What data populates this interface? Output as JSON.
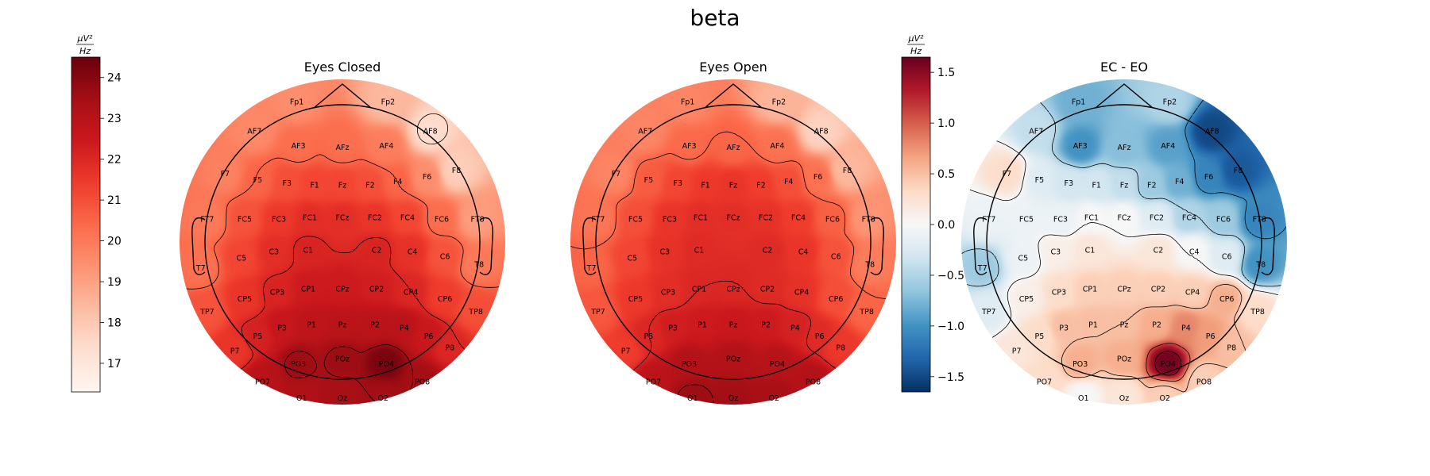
{
  "chart_data": {
    "type": "heatmap",
    "title": "beta",
    "unit_label": {
      "numerator": "μV²",
      "denominator": "Hz"
    },
    "electrodes": [
      "Fp1",
      "Fp2",
      "AF7",
      "AF3",
      "AFz",
      "AF4",
      "AF8",
      "F7",
      "F5",
      "F3",
      "F1",
      "Fz",
      "F2",
      "F4",
      "F6",
      "F8",
      "FT7",
      "FC5",
      "FC3",
      "FC1",
      "FCz",
      "FC2",
      "FC4",
      "FC6",
      "FT8",
      "T7",
      "C5",
      "C3",
      "C1",
      "C2",
      "C4",
      "C6",
      "T8",
      "TP7",
      "CP5",
      "CP3",
      "CP1",
      "CPz",
      "CP2",
      "CP4",
      "CP6",
      "TP8",
      "P7",
      "P5",
      "P3",
      "P1",
      "Pz",
      "P2",
      "P4",
      "P6",
      "P8",
      "PO7",
      "PO3",
      "POz",
      "PO4",
      "PO8",
      "O1",
      "Oz",
      "O2"
    ],
    "panels": [
      {
        "subtitle": "Eyes Closed",
        "colormap": "Reds",
        "colorbar": {
          "min": 16.3,
          "max": 24.5,
          "ticks": [
            17,
            18,
            19,
            20,
            21,
            22,
            23,
            24
          ]
        },
        "values": {
          "Fp1": 19.5,
          "Fp2": 18.4,
          "AF7": 19.6,
          "AF3": 20.3,
          "AFz": 20.3,
          "AF4": 19.9,
          "AF8": 17.4,
          "F7": 19.8,
          "F5": 20.5,
          "F3": 21.0,
          "F1": 21.2,
          "Fz": 21.2,
          "F2": 21.0,
          "F4": 20.5,
          "F6": 19.5,
          "F8": 17.8,
          "FT7": 20.0,
          "FC5": 20.9,
          "FC3": 21.5,
          "FC1": 21.8,
          "FCz": 21.8,
          "FC2": 21.6,
          "FC4": 21.2,
          "FC6": 20.3,
          "FT8": 19.1,
          "T7": 20.2,
          "C5": 21.2,
          "C3": 21.8,
          "C1": 22.1,
          "C2": 22.1,
          "C4": 21.7,
          "C6": 20.9,
          "T8": 20.0,
          "TP7": 20.9,
          "CP5": 21.6,
          "CP3": 22.1,
          "CP1": 22.4,
          "CPz": 22.4,
          "CP2": 22.3,
          "CP4": 22.0,
          "CP6": 21.4,
          "TP8": 21.0,
          "P7": 21.6,
          "P5": 22.2,
          "P3": 22.6,
          "P1": 22.8,
          "Pz": 22.9,
          "P2": 22.9,
          "P4": 22.9,
          "P6": 22.5,
          "P8": 22.0,
          "PO7": 23.0,
          "PO3": 23.6,
          "POz": 23.6,
          "PO4": 24.2,
          "PO8": 23.5,
          "O1": 23.2,
          "Oz": 23.4,
          "O2": 23.5
        },
        "contour_levels": [
          17.5,
          20.5,
          22.0,
          23.5
        ]
      },
      {
        "subtitle": "Eyes Open",
        "colormap": "Reds",
        "colorbar": {
          "min": 16.3,
          "max": 24.5,
          "ticks": [
            17,
            18,
            19,
            20,
            21,
            22,
            23,
            24
          ]
        },
        "values": {
          "Fp1": 19.7,
          "Fp2": 18.5,
          "AF7": 19.7,
          "AF3": 20.4,
          "AFz": 20.5,
          "AF4": 20.2,
          "AF8": 17.7,
          "F7": 19.7,
          "F5": 20.7,
          "F3": 21.2,
          "F1": 21.5,
          "Fz": 21.6,
          "F2": 21.4,
          "F4": 21.0,
          "F6": 20.2,
          "F8": 18.4,
          "FT7": 20.1,
          "FC5": 21.0,
          "FC3": 21.6,
          "FC1": 21.8,
          "FCz": 21.8,
          "FC2": 21.7,
          "FC4": 21.4,
          "FC6": 20.6,
          "FT8": 19.3,
          "T7": 20.5,
          "C5": 21.2,
          "C3": 21.7,
          "C1": 21.9,
          "C2": 21.9,
          "C4": 21.6,
          "C6": 20.9,
          "T8": 19.9,
          "TP7": 20.8,
          "CP5": 21.5,
          "CP3": 21.8,
          "CP1": 22.0,
          "CPz": 22.0,
          "CP2": 21.9,
          "CP4": 21.7,
          "CP6": 21.0,
          "TP8": 20.5,
          "P7": 21.4,
          "P5": 22.0,
          "P3": 22.3,
          "P1": 22.4,
          "Pz": 22.5,
          "P2": 22.4,
          "P4": 22.2,
          "P6": 21.9,
          "P8": 21.5,
          "PO7": 22.9,
          "PO3": 23.1,
          "POz": 23.1,
          "PO4": 23.0,
          "PO8": 23.1,
          "O1": 23.6,
          "Oz": 23.5,
          "O2": 23.4
        },
        "contour_levels": [
          17.5,
          20.5,
          22.0,
          23.5
        ]
      },
      {
        "subtitle": "EC - EO",
        "colormap": "RdBu_r",
        "colorbar": {
          "min": -1.65,
          "max": 1.65,
          "ticks": [
            1.5,
            1.0,
            0.5,
            0.0,
            -0.5,
            -1.0,
            -1.5
          ]
        },
        "values": {
          "Fp1": -0.8,
          "Fp2": -0.5,
          "AF7": -0.4,
          "AF3": -1.0,
          "AFz": -0.7,
          "AF4": -0.9,
          "AF8": -1.5,
          "F7": 0.3,
          "F5": -0.2,
          "F3": -0.3,
          "F1": -0.3,
          "Fz": -0.4,
          "F2": -0.6,
          "F4": -0.8,
          "F6": -1.1,
          "F8": -1.4,
          "FT7": -0.1,
          "FC5": -0.1,
          "FC3": -0.1,
          "FC1": 0.0,
          "FCz": 0.0,
          "FC2": -0.2,
          "FC4": -0.5,
          "FC6": -0.6,
          "FT8": -1.1,
          "T7": -0.6,
          "C5": -0.1,
          "C3": 0.1,
          "C1": 0.2,
          "C2": 0.2,
          "C4": 0.0,
          "C6": -0.2,
          "T8": -1.0,
          "TP7": -0.2,
          "CP5": 0.1,
          "CP3": 0.3,
          "CP1": 0.4,
          "CPz": 0.4,
          "CP2": 0.4,
          "CP4": 0.4,
          "CP6": 0.6,
          "TP8": 0.3,
          "P7": 0.2,
          "P5": 0.3,
          "P3": 0.5,
          "P1": 0.5,
          "Pz": 0.5,
          "P2": 0.6,
          "P4": 0.8,
          "P6": 0.7,
          "P8": 0.5,
          "PO7": 0.3,
          "PO3": 0.6,
          "POz": 0.6,
          "PO4": 1.6,
          "PO8": 0.4,
          "O1": 0.0,
          "Oz": 0.2,
          "O2": 0.4
        },
        "contour_levels": [
          -1.0,
          -0.5,
          0.0,
          0.5,
          1.0,
          1.5
        ]
      }
    ]
  }
}
